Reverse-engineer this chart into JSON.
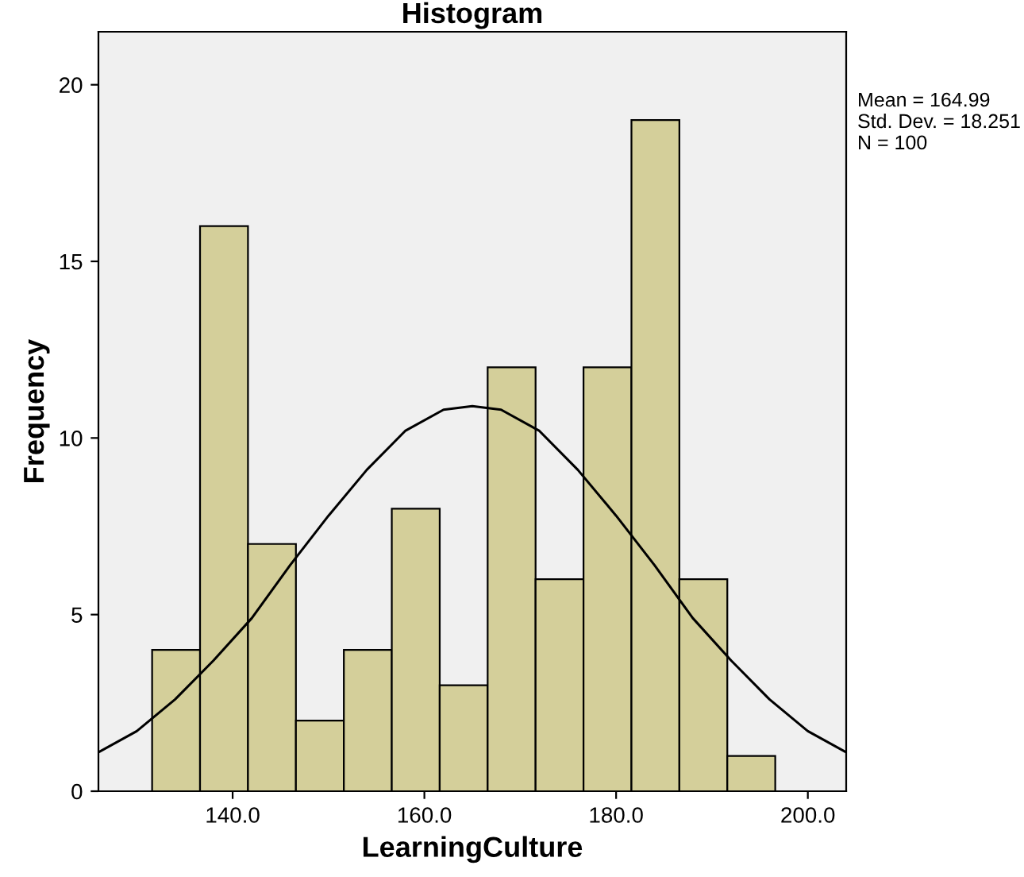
{
  "chart_data": {
    "type": "histogram",
    "title": "Histogram",
    "xlabel": "LearningCulture",
    "ylabel": "Frequency",
    "bins": [
      131.6,
      136.6,
      141.6,
      146.6,
      151.6,
      156.6,
      161.6,
      166.6,
      171.6,
      176.6,
      181.6,
      186.6,
      191.6,
      196.6
    ],
    "values": [
      4,
      16,
      7,
      2,
      4,
      8,
      3,
      12,
      6,
      12,
      19,
      6,
      1
    ],
    "color": "#d4cf9a",
    "series": [
      {
        "type": "line",
        "color": "#000000",
        "x": [
          126,
          130,
          134,
          138,
          142,
          146,
          150,
          154,
          158,
          162,
          165,
          168,
          172,
          176,
          180,
          184,
          188,
          192,
          196,
          200,
          204
        ],
        "values": [
          1.1,
          1.7,
          2.6,
          3.7,
          4.9,
          6.4,
          7.8,
          9.1,
          10.2,
          10.8,
          10.9,
          10.8,
          10.2,
          9.1,
          7.8,
          6.4,
          4.9,
          3.7,
          2.6,
          1.7,
          1.1
        ]
      }
    ],
    "xlim": [
      126,
      204
    ],
    "ylim": [
      0,
      21.5
    ],
    "xticks": [
      {
        "value": 140,
        "label": "140.0"
      },
      {
        "value": 160,
        "label": "160.0"
      },
      {
        "value": 180,
        "label": "180.0"
      },
      {
        "value": 200,
        "label": "200.0"
      }
    ],
    "yticks": [
      0,
      5,
      10,
      15,
      20
    ],
    "grid": false,
    "legend": false,
    "annotations": [
      "Mean = 164.99\nStd. Dev. = 18.251\nN = 100"
    ]
  }
}
